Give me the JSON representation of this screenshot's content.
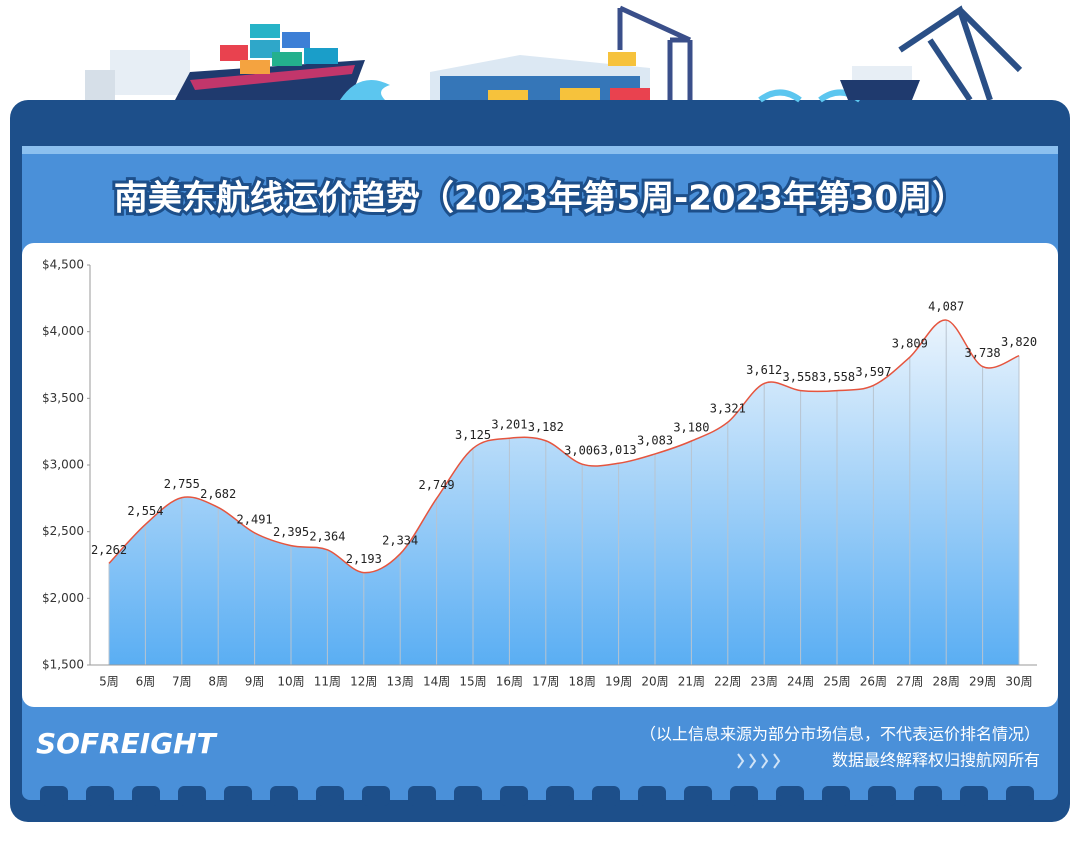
{
  "chart_data": {
    "type": "area",
    "title": "南美东航线运价趋势（2023年第5周-2023年第30周）",
    "categories": [
      "5周",
      "6周",
      "7周",
      "8周",
      "9周",
      "10周",
      "11周",
      "12周",
      "13周",
      "14周",
      "15周",
      "16周",
      "17周",
      "18周",
      "19周",
      "20周",
      "21周",
      "22周",
      "23周",
      "24周",
      "25周",
      "26周",
      "27周",
      "28周",
      "29周",
      "30周"
    ],
    "values": [
      2262,
      2554,
      2755,
      2682,
      2491,
      2395,
      2364,
      2193,
      2334,
      2749,
      3125,
      3201,
      3182,
      3006,
      3013,
      3083,
      3180,
      3321,
      3612,
      3558,
      3558,
      3597,
      3809,
      4087,
      3738,
      3820
    ],
    "value_labels": [
      "2,262",
      "2,554",
      "2,755",
      "2,682",
      "2,491",
      "2,395",
      "2,364",
      "2,193",
      "2,334",
      "2,749",
      "3,125",
      "3,201",
      "3,182",
      "3,006",
      "3,013",
      "3,083",
      "3,180",
      "3,321",
      "3,612",
      "3,558",
      "3,558",
      "3,597",
      "3,809",
      "4,087",
      "3,738",
      "3,820"
    ],
    "color": "#e5553f",
    "drop_line_color": "#b8c4d0",
    "ylim": [
      1500,
      4500
    ],
    "yticks": [
      {
        "value": 1500,
        "label": "$1,500"
      },
      {
        "value": 2000,
        "label": "$2,000"
      },
      {
        "value": 2500,
        "label": "$2,500"
      },
      {
        "value": 3000,
        "label": "$3,000"
      },
      {
        "value": 3500,
        "label": "$3,500"
      },
      {
        "value": 4000,
        "label": "$4,000"
      },
      {
        "value": 4500,
        "label": "$4,500"
      }
    ],
    "smooth": true
  },
  "brand": "SOFREIGHT",
  "footer": {
    "note": "（以上信息来源为部分市场信息，不代表运价排名情况）",
    "copyright": "数据最终解释权归搜航网所有"
  }
}
